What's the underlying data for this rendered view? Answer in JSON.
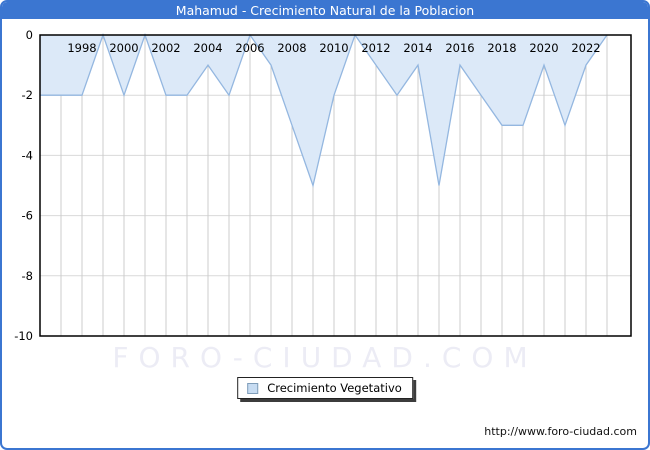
{
  "window": {
    "title": "Mahamud - Crecimiento Natural de la Poblacion"
  },
  "watermark": "FORO-CIUDAD.COM",
  "source_url": "http://www.foro-ciudad.com",
  "legend": {
    "label": "Crecimiento Vegetativo",
    "swatch_fill": "#C7DCF2",
    "swatch_border": "#7F9DB9"
  },
  "colors": {
    "frame_blue": "#3B76D1",
    "title_text": "#FFFFFF",
    "area_fill": "#DCE9F8",
    "series_line": "#94B7E0",
    "grid_vertical": "#CCCCCC",
    "grid_horizontal": "#D9D9D9",
    "plot_border": "#000000",
    "axis_text": "#000000",
    "watermark": "#ECECF5"
  },
  "chart_data": {
    "type": "area",
    "title": "Mahamud - Crecimiento Natural de la Poblacion",
    "series_name": "Crecimiento Vegetativo",
    "x": [
      1996,
      1997,
      1998,
      1999,
      2000,
      2001,
      2002,
      2003,
      2004,
      2005,
      2006,
      2007,
      2008,
      2009,
      2010,
      2011,
      2012,
      2013,
      2014,
      2015,
      2016,
      2017,
      2018,
      2019,
      2020,
      2021,
      2022,
      2023
    ],
    "values": [
      -2,
      -2,
      -2,
      0,
      -2,
      0,
      -2,
      -2,
      -1,
      -2,
      0,
      -1,
      -3,
      -5,
      -2,
      0,
      -1,
      -2,
      -1,
      -5,
      -1,
      -2,
      -3,
      -3,
      -1,
      -3,
      -1,
      0
    ],
    "baseline": 0,
    "ylim": [
      -10,
      0
    ],
    "yticks": [
      0,
      -2,
      -4,
      -6,
      -8,
      -10
    ],
    "xtick_labels": [
      1998,
      2000,
      2002,
      2004,
      2006,
      2008,
      2010,
      2012,
      2014,
      2016,
      2018,
      2020,
      2022
    ],
    "grid": true,
    "legend_position": "bottom-center",
    "x_labels_inside_top": true
  }
}
